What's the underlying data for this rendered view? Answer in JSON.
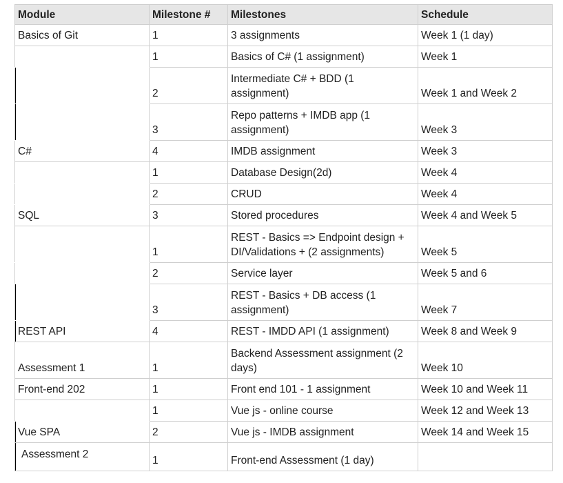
{
  "headers": [
    "Module",
    "Milestone #",
    "Milestones",
    "Schedule"
  ],
  "rows": [
    {
      "module": "Basics of Git",
      "num": "1",
      "milestone": "3 assignments",
      "schedule": "Week 1 (1 day)"
    },
    {
      "module": "",
      "num": "1",
      "milestone": "Basics of C# (1 assignment)",
      "schedule": "Week 1"
    },
    {
      "module": "",
      "num": "2",
      "milestone": "Intermediate C# + BDD (1 assignment)",
      "schedule": "Week 1 and Week 2"
    },
    {
      "module": "",
      "num": "3",
      "milestone": "Repo patterns + IMDB app (1 assignment)",
      "schedule": "Week 3"
    },
    {
      "module": "C#",
      "num": "4",
      "milestone": "IMDB assignment",
      "schedule": "Week 3"
    },
    {
      "module": "",
      "num": "1",
      "milestone": "Database Design(2d)",
      "schedule": "Week 4"
    },
    {
      "module": "",
      "num": "2",
      "milestone": "CRUD",
      "schedule": "Week 4"
    },
    {
      "module": "SQL",
      "num": "3",
      "milestone": "Stored procedures",
      "schedule": "Week 4 and Week 5"
    },
    {
      "module": "",
      "num": "1",
      "milestone": "REST - Basics => Endpoint design + DI/Validations + (2 assignments)",
      "schedule": "Week 5"
    },
    {
      "module": "",
      "num": "2",
      "milestone": " Service layer",
      "schedule": "Week 5 and 6"
    },
    {
      "module": "",
      "num": "3",
      "milestone": "REST - Basics + DB access (1 assignment)",
      "schedule": "Week 7"
    },
    {
      "module": "REST API",
      "num": "4",
      "milestone": "REST - IMDD API (1 assignment)",
      "schedule": "Week 8 and Week 9"
    },
    {
      "module": "Assessment 1",
      "num": "1",
      "milestone": "Backend Assessment  assignment (2 days)",
      "schedule": "Week 10"
    },
    {
      "module": "Front-end 202",
      "num": "1",
      "milestone": "Front end 101 - 1 assignment",
      "schedule": "Week 10 and Week 11"
    },
    {
      "module": "",
      "num": "1",
      "milestone": "Vue js - online course",
      "schedule": "Week 12 and Week 13"
    },
    {
      "module": "Vue SPA",
      "num": "2",
      "milestone": "Vue js - IMDB assignment",
      "schedule": "Week 14 and Week 15"
    },
    {
      "module": "Assessment 2",
      "num": "1",
      "milestone": "Front-end Assessment (1 day)",
      "schedule": ""
    }
  ]
}
